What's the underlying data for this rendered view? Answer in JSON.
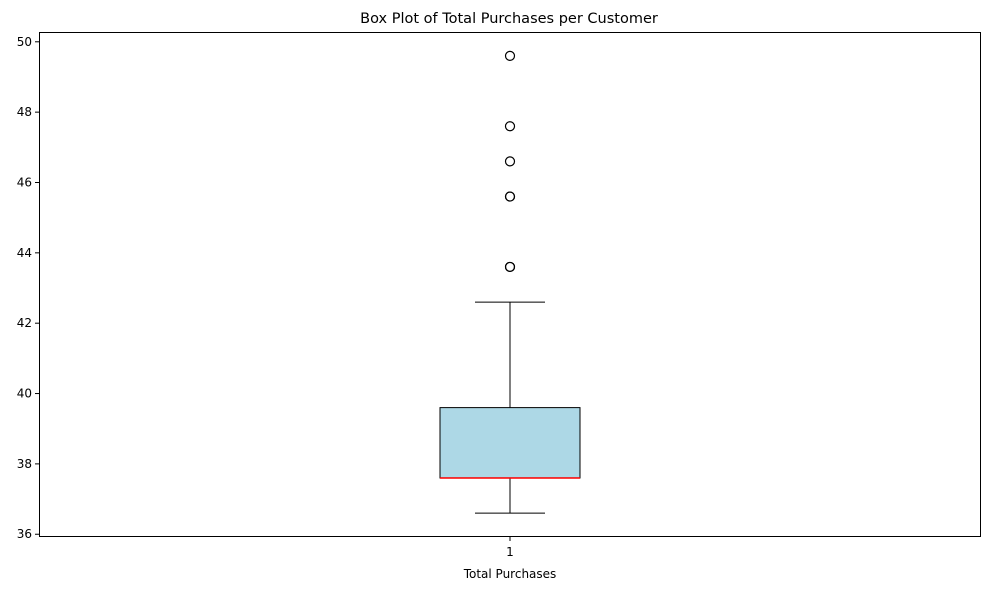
{
  "chart_data": {
    "type": "box",
    "title": "Box Plot of Total Purchases per Customer",
    "xlabel": "Total Purchases",
    "ylabel": "",
    "categories": [
      "1"
    ],
    "ylim": [
      35.95,
      50.25
    ],
    "yticks": [
      36,
      38,
      40,
      42,
      44,
      46,
      48,
      50
    ],
    "grid": false,
    "legend": "none",
    "boxes": [
      {
        "category": "1",
        "whisker_low": 36.6,
        "q1": 37.6,
        "median": 37.6,
        "q3": 39.6,
        "whisker_high": 42.6,
        "outliers": [
          43.6,
          43.6,
          45.6,
          45.6,
          46.6,
          47.6,
          49.6
        ]
      }
    ],
    "colors": {
      "box_fill": "#add8e6",
      "box_edge": "#000000",
      "median": "#ff0000",
      "whisker": "#000000",
      "outlier_edge": "#000000"
    }
  }
}
